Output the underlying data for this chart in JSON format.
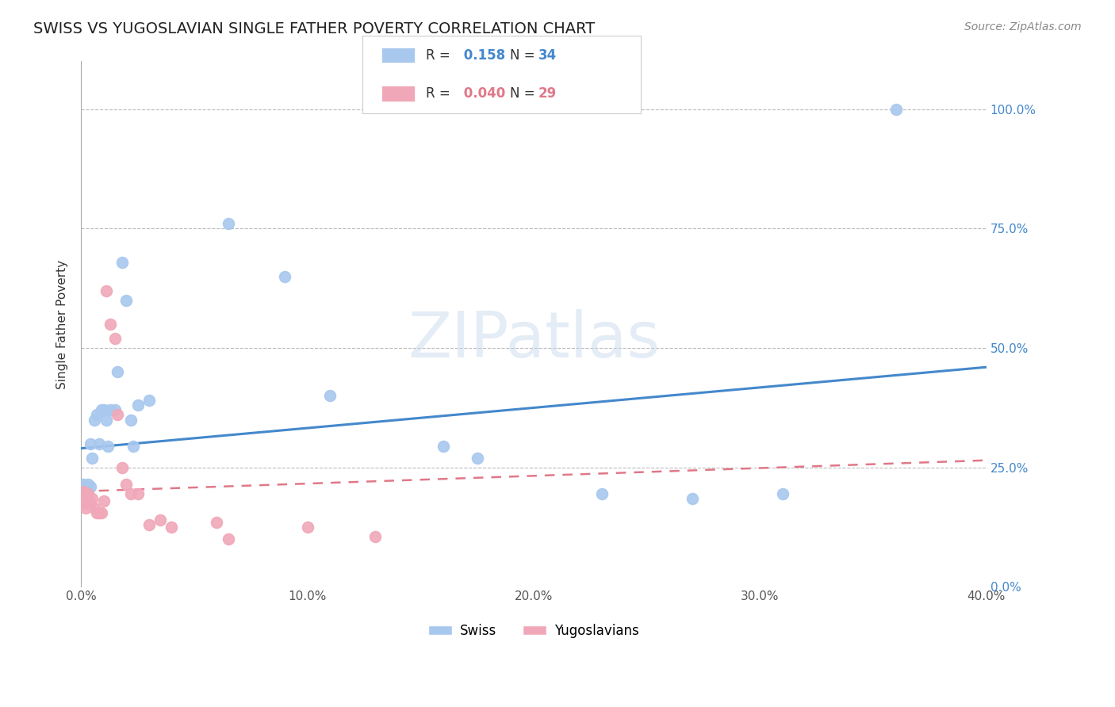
{
  "title": "SWISS VS YUGOSLAVIAN SINGLE FATHER POVERTY CORRELATION CHART",
  "source": "Source: ZipAtlas.com",
  "ylabel": "Single Father Poverty",
  "xlim": [
    0.0,
    0.4
  ],
  "ylim": [
    0.0,
    1.1
  ],
  "yticks": [
    0.0,
    0.25,
    0.5,
    0.75,
    1.0
  ],
  "ytick_labels": [
    "0.0%",
    "25.0%",
    "50.0%",
    "75.0%",
    "100.0%"
  ],
  "xticks": [
    0.0,
    0.1,
    0.2,
    0.3,
    0.4
  ],
  "xtick_labels": [
    "0.0%",
    "10.0%",
    "20.0%",
    "30.0%",
    "40.0%"
  ],
  "swiss_R": 0.158,
  "swiss_N": 34,
  "yugo_R": 0.04,
  "yugo_N": 29,
  "swiss_color": "#A8C8EE",
  "yugo_color": "#F0A8B8",
  "swiss_line_color": "#4488CC",
  "yugo_line_color": "#E07888",
  "watermark": "ZIPatlas",
  "swiss_x": [
    0.001,
    0.001,
    0.002,
    0.002,
    0.003,
    0.003,
    0.004,
    0.004,
    0.005,
    0.006,
    0.007,
    0.008,
    0.009,
    0.01,
    0.011,
    0.012,
    0.013,
    0.015,
    0.016,
    0.018,
    0.02,
    0.022,
    0.023,
    0.025,
    0.03,
    0.065,
    0.09,
    0.11,
    0.16,
    0.175,
    0.23,
    0.27,
    0.31,
    0.36
  ],
  "swiss_y": [
    0.195,
    0.215,
    0.2,
    0.21,
    0.215,
    0.2,
    0.21,
    0.3,
    0.27,
    0.35,
    0.36,
    0.3,
    0.37,
    0.37,
    0.35,
    0.295,
    0.37,
    0.37,
    0.45,
    0.68,
    0.6,
    0.35,
    0.295,
    0.38,
    0.39,
    0.76,
    0.65,
    0.4,
    0.295,
    0.27,
    0.195,
    0.185,
    0.195,
    1.0
  ],
  "yugo_x": [
    0.001,
    0.001,
    0.002,
    0.002,
    0.002,
    0.003,
    0.003,
    0.004,
    0.005,
    0.006,
    0.007,
    0.008,
    0.009,
    0.01,
    0.011,
    0.013,
    0.015,
    0.016,
    0.018,
    0.02,
    0.022,
    0.025,
    0.03,
    0.035,
    0.04,
    0.06,
    0.065,
    0.1,
    0.13
  ],
  "yugo_y": [
    0.195,
    0.2,
    0.19,
    0.175,
    0.165,
    0.195,
    0.19,
    0.175,
    0.185,
    0.165,
    0.155,
    0.155,
    0.155,
    0.18,
    0.62,
    0.55,
    0.52,
    0.36,
    0.25,
    0.215,
    0.195,
    0.195,
    0.13,
    0.14,
    0.125,
    0.135,
    0.1,
    0.125,
    0.105
  ],
  "swiss_line_x0": 0.0,
  "swiss_line_y0": 0.29,
  "swiss_line_x1": 0.4,
  "swiss_line_y1": 0.46,
  "yugo_line_x0": 0.0,
  "yugo_line_y0": 0.2,
  "yugo_line_x1": 0.4,
  "yugo_line_y1": 0.265
}
